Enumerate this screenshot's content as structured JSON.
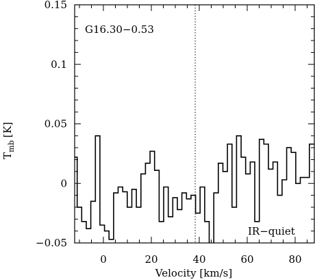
{
  "chart_data": {
    "type": "line",
    "style": "step",
    "source_label": "G16.30−0.53",
    "class_label": "IR−quiet",
    "xlabel": "Velocity [km/s]",
    "ylabel_main": "T",
    "ylabel_sub": "mb",
    "ylabel_unit": "[K]",
    "xlim": [
      -12,
      88
    ],
    "ylim": [
      -0.05,
      0.15
    ],
    "x_ticks": [
      0,
      20,
      40,
      60,
      80
    ],
    "x_tick_labels": [
      "0",
      "20",
      "40",
      "60",
      "80"
    ],
    "y_ticks": [
      -0.05,
      0,
      0.05,
      0.1,
      0.15
    ],
    "y_tick_labels": [
      "−0.05",
      "0",
      "0.05",
      "0.1",
      "0.15"
    ],
    "reference_velocity": 38.3,
    "channel_width": 1.9,
    "series": [
      {
        "name": "",
        "color": "#000000",
        "x": [
          -11.9,
          -10.0,
          -8.1,
          -6.2,
          -4.3,
          -2.4,
          -0.5,
          1.4,
          3.3,
          5.2,
          7.1,
          9.0,
          10.9,
          12.8,
          14.7,
          16.6,
          18.5,
          20.4,
          22.3,
          24.2,
          26.1,
          28.0,
          29.9,
          31.8,
          33.7,
          35.6,
          37.5,
          39.4,
          41.3,
          43.2,
          45.1,
          47.0,
          48.9,
          50.8,
          52.7,
          54.6,
          56.5,
          58.4,
          60.3,
          62.2,
          64.1,
          66.0,
          67.9,
          69.8,
          71.7,
          73.6,
          75.5,
          77.4,
          79.3,
          81.2,
          83.1,
          85.0,
          86.9
        ],
        "y": [
          0.022,
          -0.02,
          -0.032,
          -0.038,
          -0.015,
          0.04,
          -0.035,
          -0.04,
          -0.047,
          -0.008,
          -0.003,
          -0.007,
          -0.02,
          -0.005,
          -0.02,
          0.008,
          0.017,
          0.027,
          0.011,
          -0.032,
          -0.003,
          -0.028,
          -0.012,
          -0.022,
          -0.008,
          -0.013,
          -0.01,
          -0.025,
          -0.003,
          -0.032,
          -0.052,
          -0.008,
          0.017,
          0.01,
          0.033,
          -0.02,
          0.04,
          0.022,
          0.008,
          0.018,
          -0.032,
          0.037,
          0.033,
          0.012,
          0.018,
          -0.01,
          0.003,
          0.03,
          0.026,
          0.0,
          0.005,
          0.005,
          0.033
        ]
      }
    ]
  }
}
